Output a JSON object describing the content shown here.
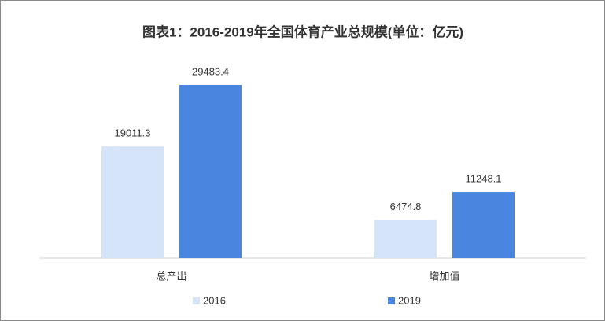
{
  "chart_data": {
    "type": "bar",
    "title": "图表1：2016-2019年全国体育产业总规模(单位：亿元)",
    "categories": [
      "总产出",
      "增加值"
    ],
    "series": [
      {
        "name": "2016",
        "color": "#d6e4fa",
        "values": [
          19011.3,
          6474.8
        ]
      },
      {
        "name": "2019",
        "color": "#4a86e0",
        "values": [
          29483.4,
          11248.1
        ]
      }
    ],
    "legend": "bottom"
  }
}
